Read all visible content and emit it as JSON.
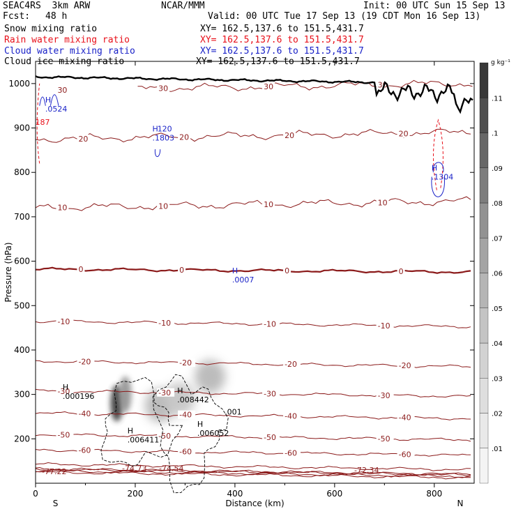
{
  "header": {
    "model": "SEAC4RS  3km ARW",
    "center": "NCAR/MMM",
    "init": "Init: 00 UTC Sun 15 Sep 13",
    "fcst_label": "Fcst:",
    "fcst_value": "48 h",
    "valid": "Valid: 00 UTC Tue 17 Sep 13 (19 CDT Mon 16 Sep 13)"
  },
  "fields": [
    {
      "name": "Snow mixing ratio",
      "xy": "XY= 162.5,137.6 to 151.5,431.7",
      "color": "#000000"
    },
    {
      "name": "Rain water mixing ratio",
      "xy": "XY= 162.5,137.6 to 151.5,431.7",
      "color": "#e8101a"
    },
    {
      "name": "Cloud water mixing ratio",
      "xy": "XY= 162.5,137.6 to 151.5,431.7",
      "color": "#1a22c8"
    },
    {
      "name": "Cloud ice mixing ratio",
      "xy": "XY= 162.5,137.6 to 151.5,431.7",
      "color": "#000000"
    }
  ],
  "chart_data": {
    "type": "cross-section",
    "xlabel": "Distance (km)",
    "ylabel": "Pressure (hPa)",
    "xlim": [
      0,
      880
    ],
    "ylim": [
      1050,
      100
    ],
    "x_ticks": [
      0,
      200,
      400,
      600,
      800
    ],
    "y_ticks": [
      200,
      300,
      400,
      500,
      600,
      700,
      800,
      900,
      1000
    ],
    "left_end_label": "S",
    "right_end_label": "N",
    "colorbar": {
      "unit": "g kg⁻¹",
      "levels": [
        ".01",
        ".02",
        ".03",
        ".04",
        ".05",
        ".06",
        ".07",
        ".08",
        ".09",
        ".1",
        ".11"
      ],
      "colors": [
        "#f4f4f4",
        "#e9e9e9",
        "#dedede",
        "#d2d2d2",
        "#c4c4c4",
        "#b5b5b5",
        "#a4a4a4",
        "#929292",
        "#7d7d7d",
        "#676767",
        "#4f4f4f",
        "#383838"
      ]
    },
    "temperature_color": "#8b1a1a",
    "terrain_color": "#000000",
    "temperature_isotherms": [
      {
        "label": "-77.22",
        "p": 125
      },
      {
        "label": "-74.73",
        "p": 132
      },
      {
        "label": "-74.54",
        "p": 132
      },
      {
        "label": "-72.34",
        "p": 128
      },
      {
        "label": "-70",
        "p": 143
      },
      {
        "label": "-60",
        "p": 175
      },
      {
        "label": "-50",
        "p": 210
      },
      {
        "label": "-40",
        "p": 258
      },
      {
        "label": "-30",
        "p": 308
      },
      {
        "label": "-20",
        "p": 375
      },
      {
        "label": "-10",
        "p": 465
      },
      {
        "label": "0",
        "p": 582
      },
      {
        "label": "10",
        "p": 720
      },
      {
        "label": "20",
        "p": 875
      },
      {
        "label": "30",
        "p": 985
      }
    ],
    "annotations": [
      {
        "text": "H",
        "value": ".006411",
        "x": 190,
        "p": 195,
        "color": "#000000"
      },
      {
        "text": "H",
        "value": ".006052",
        "x": 330,
        "p": 210,
        "color": "#000000"
      },
      {
        "text": "H",
        "value": ".008442",
        "x": 290,
        "p": 285,
        "color": "#000000"
      },
      {
        "text": "H",
        "value": ".000196",
        "x": 60,
        "p": 293,
        "color": "#000000"
      },
      {
        "text": "",
        "value": ".001",
        "x": 385,
        "p": 258,
        "color": "#000000"
      },
      {
        "text": "H",
        "value": ".0007",
        "x": 400,
        "p": 555,
        "color": "#1a22c8"
      },
      {
        "text": "H",
        "value": ".1803",
        "x": 240,
        "p": 875,
        "color": "#1a22c8"
      },
      {
        "text": "",
        "value": "120",
        "x": 250,
        "p": 895,
        "color": "#1a22c8"
      },
      {
        "text": "H",
        "value": ".0524",
        "x": 25,
        "p": 940,
        "color": "#1a22c8"
      },
      {
        "text": "",
        "value": "187",
        "x": 5,
        "p": 910,
        "color": "#e8101a"
      },
      {
        "text": "H",
        "value": ".1304",
        "x": 800,
        "p": 787,
        "color": "#1a22c8"
      }
    ],
    "snow_shading": [
      {
        "x": 163,
        "p": 280,
        "level": 0.11
      },
      {
        "x": 180,
        "p": 300,
        "level": 0.07
      },
      {
        "x": 250,
        "p": 275,
        "level": 0.05
      },
      {
        "x": 290,
        "p": 290,
        "level": 0.04
      },
      {
        "x": 350,
        "p": 340,
        "level": 0.05
      }
    ]
  }
}
